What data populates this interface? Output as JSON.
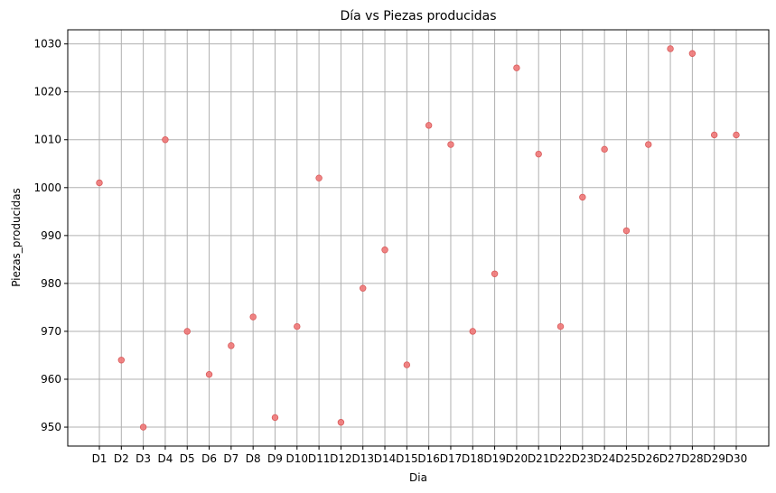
{
  "chart_data": {
    "type": "scatter",
    "title": "Día vs Piezas producidas",
    "xlabel": "Dia",
    "ylabel": "Piezas_producidas",
    "categories": [
      "D1",
      "D2",
      "D3",
      "D4",
      "D5",
      "D6",
      "D7",
      "D8",
      "D9",
      "D10",
      "D11",
      "D12",
      "D13",
      "D14",
      "D15",
      "D16",
      "D17",
      "D18",
      "D19",
      "D20",
      "D21",
      "D22",
      "D23",
      "D24",
      "D25",
      "D26",
      "D27",
      "D28",
      "D29",
      "D30"
    ],
    "values": [
      1001,
      964,
      950,
      1010,
      970,
      961,
      967,
      973,
      952,
      971,
      1002,
      951,
      979,
      987,
      963,
      1013,
      1009,
      970,
      982,
      1025,
      1007,
      971,
      998,
      1008,
      991,
      1009,
      1029,
      1028,
      1011,
      1011
    ],
    "yticks": [
      950,
      960,
      970,
      980,
      990,
      1000,
      1010,
      1020,
      1030
    ],
    "ylim": [
      946.05,
      1032.95
    ],
    "grid": true,
    "point_color": "#f07878"
  }
}
